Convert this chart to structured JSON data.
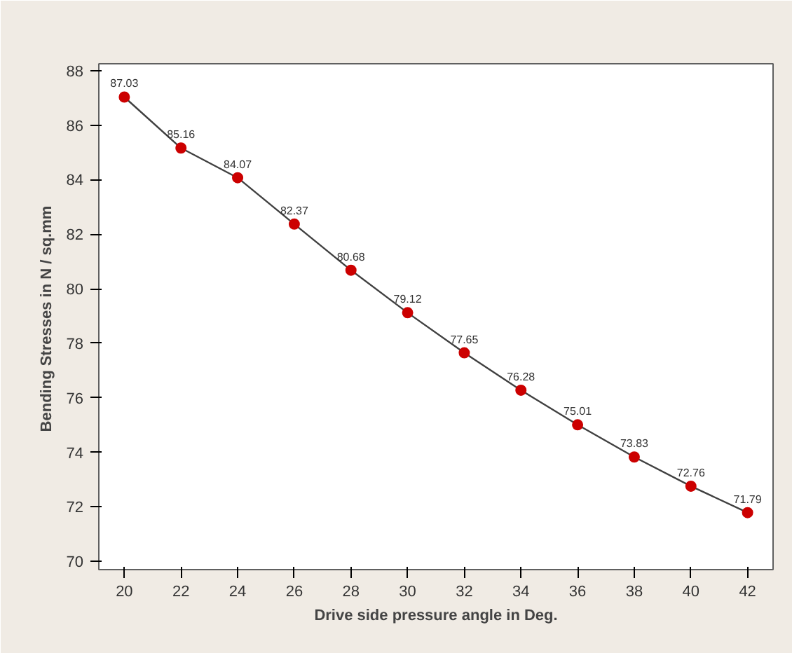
{
  "chart_data": {
    "type": "line",
    "xlabel": "Drive side pressure angle in Deg.",
    "ylabel": "Bending Stresses in  N / sq.mm",
    "x": [
      20,
      22,
      24,
      26,
      28,
      30,
      32,
      34,
      36,
      38,
      40,
      42
    ],
    "series": [
      {
        "color": "#404040",
        "values": [
          87.03,
          85.16,
          84.07,
          82.37,
          80.68,
          79.12,
          77.65,
          76.28,
          75.01,
          73.83,
          72.76,
          71.79
        ]
      }
    ],
    "marker": "circle",
    "line_style": "solid",
    "data_labels": true,
    "xlim": [
      19.1,
      42.9
    ],
    "ylim": [
      69.7,
      88.25
    ],
    "xticks": [
      20,
      22,
      24,
      26,
      28,
      30,
      32,
      34,
      36,
      38,
      40,
      42
    ],
    "yticks": [
      70,
      72,
      74,
      76,
      78,
      80,
      82,
      84,
      86,
      88
    ],
    "grid": false
  }
}
